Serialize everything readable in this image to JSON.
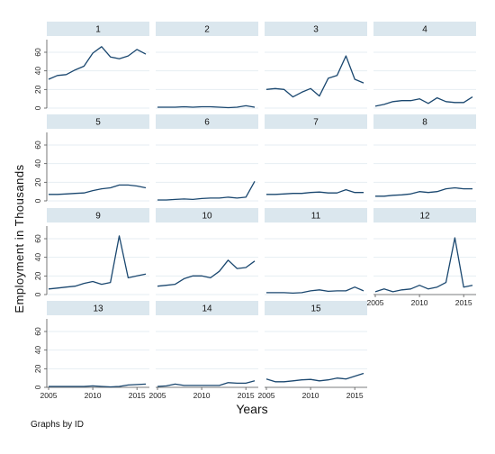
{
  "chart_data": {
    "type": "line",
    "layout": "small-multiples",
    "xlabel": "Years",
    "ylabel": "Employment in Thousands",
    "note": "Graphs by ID",
    "xlim": [
      2005,
      2016
    ],
    "ylim": [
      0,
      60
    ],
    "xticks": [
      2005,
      2010,
      2015
    ],
    "yticks": [
      0,
      20,
      40,
      60
    ],
    "x": [
      2005,
      2006,
      2007,
      2008,
      2009,
      2010,
      2011,
      2012,
      2013,
      2014,
      2015,
      2016
    ],
    "grid": true,
    "color": "#1a476f",
    "panels": [
      {
        "id": "1",
        "values": [
          31,
          35,
          36,
          41,
          45,
          59,
          66,
          55,
          53,
          56,
          63,
          58
        ]
      },
      {
        "id": "2",
        "values": [
          1,
          1,
          1,
          1.5,
          1,
          1.5,
          1.5,
          1,
          0.5,
          1,
          2.5,
          1
        ]
      },
      {
        "id": "3",
        "values": [
          20,
          21,
          20,
          12,
          17,
          21,
          13,
          32,
          35,
          56,
          31,
          27
        ]
      },
      {
        "id": "4",
        "values": [
          2,
          4,
          7,
          8,
          8,
          10,
          5,
          11,
          7,
          6,
          6,
          12
        ]
      },
      {
        "id": "5",
        "values": [
          7,
          7,
          7.5,
          8,
          8.5,
          11,
          13,
          14,
          17,
          17,
          16,
          14
        ]
      },
      {
        "id": "6",
        "values": [
          1,
          1,
          1.5,
          2,
          1.5,
          2.5,
          3,
          3,
          4,
          3,
          4,
          21
        ]
      },
      {
        "id": "7",
        "values": [
          7,
          7,
          7.5,
          8,
          8,
          9,
          9.5,
          8.5,
          8.5,
          12,
          9,
          9
        ]
      },
      {
        "id": "8",
        "values": [
          5,
          5,
          6,
          6.5,
          7.5,
          10,
          9,
          10,
          13,
          14,
          13,
          13
        ]
      },
      {
        "id": "9",
        "values": [
          6,
          7,
          8,
          9,
          12,
          14,
          11,
          13,
          63,
          18,
          20,
          22
        ]
      },
      {
        "id": "10",
        "values": [
          9,
          10,
          11,
          17,
          20,
          20,
          18,
          25,
          37,
          28,
          29,
          36
        ]
      },
      {
        "id": "11",
        "values": [
          2,
          2,
          2,
          1.5,
          2,
          4,
          5,
          3.5,
          4,
          4,
          8,
          4
        ]
      },
      {
        "id": "12",
        "values": [
          3,
          6,
          3,
          5,
          6,
          10,
          6,
          8,
          13,
          61,
          8,
          10
        ]
      },
      {
        "id": "13",
        "values": [
          1,
          1,
          1,
          1,
          1,
          1.5,
          1,
          0.5,
          1,
          2.5,
          3,
          3.5
        ]
      },
      {
        "id": "14",
        "values": [
          1,
          1.5,
          3.5,
          2,
          2,
          2,
          2,
          2,
          5,
          4.5,
          4.5,
          7
        ]
      },
      {
        "id": "15",
        "values": [
          9,
          6,
          6,
          7,
          8,
          8.5,
          7,
          8,
          10,
          9,
          12,
          15
        ]
      }
    ]
  }
}
